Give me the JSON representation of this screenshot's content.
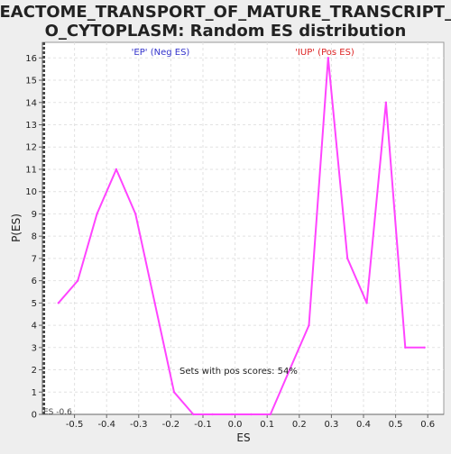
{
  "chart_data": {
    "type": "line",
    "title_line1": "REACTOME_TRANSPORT_OF_MATURE_TRANSCRIPT_T",
    "title_line2": "O_CYTOPLASM: Random ES distribution",
    "xlabel": "ES",
    "ylabel": "P(ES)",
    "xlim": [
      -0.6,
      0.65
    ],
    "ylim": [
      0,
      16.7
    ],
    "xticks": [
      -0.5,
      -0.4,
      -0.3,
      -0.2,
      -0.1,
      0.0,
      0.1,
      0.2,
      0.3,
      0.4,
      0.5,
      0.6
    ],
    "xtick_labels": [
      "-0.5",
      "-0.4",
      "-0.3",
      "-0.2",
      "-0.1",
      "0.0",
      "0.1",
      "0.2",
      "0.3",
      "0.4",
      "0.5",
      "0.6"
    ],
    "yticks": [
      0,
      1,
      2,
      3,
      4,
      5,
      6,
      7,
      8,
      9,
      10,
      11,
      12,
      13,
      14,
      15,
      16
    ],
    "grid": true,
    "series": [
      {
        "color": "#ff44ff",
        "x": [
          -0.55,
          -0.49,
          -0.43,
          -0.37,
          -0.31,
          -0.25,
          -0.19,
          -0.13,
          -0.07,
          -0.01,
          0.05,
          0.11,
          0.17,
          0.23,
          0.29,
          0.35,
          0.41,
          0.47,
          0.53,
          0.59
        ],
        "y": [
          5,
          6,
          9,
          11,
          9,
          5,
          1,
          0,
          0,
          0,
          0,
          0,
          2,
          4,
          16,
          7,
          5,
          14,
          3,
          3
        ]
      }
    ],
    "annotations": {
      "neg_label": "'EP' (Neg ES)",
      "neg_color": "#3333cc",
      "pos_label": "'IUP' (Pos ES)",
      "pos_color": "#dd2222",
      "pos_scores": "Sets with pos scores: 54%",
      "es_marker_label": "ES -0.6",
      "es_marker_x": -0.595
    }
  }
}
